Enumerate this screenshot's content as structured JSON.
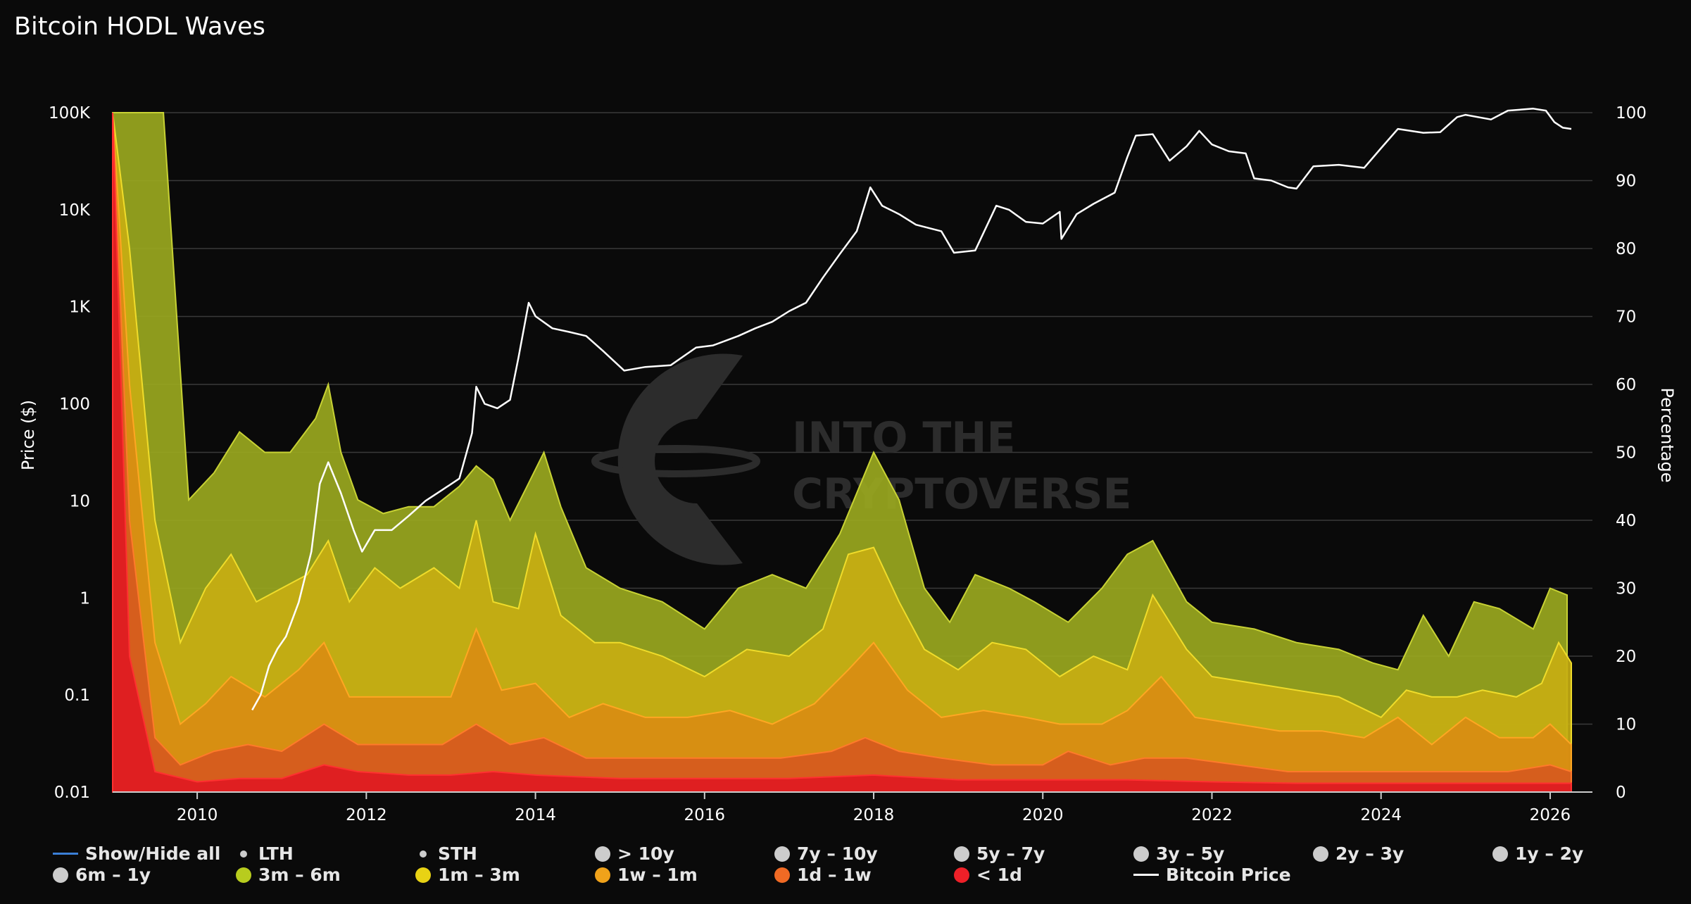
{
  "title": "Bitcoin HODL Waves",
  "watermark": {
    "line1": "INTO THE",
    "line2": "CRYPTOVERSE"
  },
  "colors": {
    "background": "#0a0a0a",
    "grid": "#3a3a3a",
    "band_3m_6m": "#9aa81f",
    "band_1m_3m": "#c7ae12",
    "band_1w_1m": "#d98c12",
    "band_1d_1w": "#d65a1e",
    "band_lt1d": "#e01a22",
    "price": "#ffffff"
  },
  "chart_data": {
    "type": "area",
    "title": "Bitcoin HODL Waves",
    "left_axis": {
      "label": "Price ($)",
      "scale": "log",
      "range": [
        0.01,
        100000
      ],
      "ticks": [
        "0.01",
        "0.1",
        "1",
        "10",
        "100",
        "1K",
        "10K",
        "100K"
      ]
    },
    "right_axis": {
      "label": "Percentage",
      "range": [
        0,
        100
      ],
      "ticks": [
        "0",
        "10",
        "20",
        "30",
        "40",
        "50",
        "60",
        "70",
        "80",
        "90",
        "100"
      ]
    },
    "x_axis": {
      "range": [
        2009.0,
        2026.5
      ],
      "ticks": [
        "2010",
        "2012",
        "2014",
        "2016",
        "2018",
        "2020",
        "2022",
        "2024",
        "2026"
      ]
    },
    "grid": true,
    "legend_position": "bottom",
    "series": [
      {
        "name": "3m – 6m",
        "kind": "cumulative-percent",
        "x": [
          2009.0,
          2009.3,
          2009.6,
          2009.9,
          2010.2,
          2010.5,
          2010.8,
          2011.1,
          2011.4,
          2011.55,
          2011.7,
          2011.9,
          2012.2,
          2012.5,
          2012.8,
          2013.1,
          2013.3,
          2013.5,
          2013.7,
          2013.9,
          2014.1,
          2014.3,
          2014.6,
          2015.0,
          2015.5,
          2016.0,
          2016.4,
          2016.8,
          2017.2,
          2017.6,
          2018.0,
          2018.3,
          2018.6,
          2018.9,
          2019.2,
          2019.6,
          2019.9,
          2020.3,
          2020.7,
          2021.0,
          2021.3,
          2021.7,
          2022.0,
          2022.5,
          2023.0,
          2023.5,
          2023.9,
          2024.2,
          2024.5,
          2024.8,
          2025.1,
          2025.4,
          2025.8,
          2026.0,
          2026.2
        ],
        "y": [
          100,
          100,
          100,
          43,
          47,
          53,
          50,
          50,
          55,
          60,
          50,
          43,
          41,
          42,
          42,
          45,
          48,
          46,
          40,
          45,
          50,
          42,
          33,
          30,
          28,
          24,
          30,
          32,
          30,
          38,
          50,
          43,
          30,
          25,
          32,
          30,
          28,
          25,
          30,
          35,
          37,
          28,
          25,
          24,
          22,
          21,
          19,
          18,
          26,
          20,
          28,
          27,
          24,
          30,
          29
        ]
      },
      {
        "name": "1m – 3m",
        "kind": "cumulative-percent",
        "x": [
          2009.0,
          2009.2,
          2009.5,
          2009.8,
          2010.1,
          2010.4,
          2010.7,
          2011.0,
          2011.3,
          2011.55,
          2011.8,
          2012.1,
          2012.4,
          2012.8,
          2013.1,
          2013.3,
          2013.5,
          2013.8,
          2014.0,
          2014.3,
          2014.7,
          2015.0,
          2015.5,
          2016.0,
          2016.5,
          2017.0,
          2017.4,
          2017.7,
          2018.0,
          2018.3,
          2018.6,
          2019.0,
          2019.4,
          2019.8,
          2020.2,
          2020.6,
          2021.0,
          2021.3,
          2021.7,
          2022.0,
          2022.5,
          2023.0,
          2023.5,
          2024.0,
          2024.3,
          2024.6,
          2024.9,
          2025.2,
          2025.6,
          2025.9,
          2026.1,
          2026.25
        ],
        "y": [
          100,
          80,
          40,
          22,
          30,
          35,
          28,
          30,
          32,
          37,
          28,
          33,
          30,
          33,
          30,
          40,
          28,
          27,
          38,
          26,
          22,
          22,
          20,
          17,
          21,
          20,
          24,
          35,
          36,
          28,
          21,
          18,
          22,
          21,
          17,
          20,
          18,
          29,
          21,
          17,
          16,
          15,
          14,
          11,
          15,
          14,
          14,
          15,
          14,
          16,
          22,
          19
        ]
      },
      {
        "name": "1w – 1m",
        "kind": "cumulative-percent",
        "x": [
          2009.0,
          2009.2,
          2009.5,
          2009.8,
          2010.1,
          2010.4,
          2010.8,
          2011.2,
          2011.5,
          2011.8,
          2012.2,
          2012.6,
          2013.0,
          2013.3,
          2013.6,
          2014.0,
          2014.4,
          2014.8,
          2015.3,
          2015.8,
          2016.3,
          2016.8,
          2017.3,
          2017.7,
          2018.0,
          2018.4,
          2018.8,
          2019.3,
          2019.8,
          2020.2,
          2020.7,
          2021.0,
          2021.4,
          2021.8,
          2022.3,
          2022.8,
          2023.3,
          2023.8,
          2024.2,
          2024.6,
          2025.0,
          2025.4,
          2025.8,
          2026.0,
          2026.25
        ],
        "y": [
          100,
          60,
          22,
          10,
          13,
          17,
          14,
          18,
          22,
          14,
          14,
          14,
          14,
          24,
          15,
          16,
          11,
          13,
          11,
          11,
          12,
          10,
          13,
          18,
          22,
          15,
          11,
          12,
          11,
          10,
          10,
          12,
          17,
          11,
          10,
          9,
          9,
          8,
          11,
          7,
          11,
          8,
          8,
          10,
          7
        ]
      },
      {
        "name": "1d – 1w",
        "kind": "cumulative-percent",
        "x": [
          2009.0,
          2009.2,
          2009.5,
          2009.8,
          2010.2,
          2010.6,
          2011.0,
          2011.5,
          2011.9,
          2012.4,
          2012.9,
          2013.3,
          2013.7,
          2014.1,
          2014.6,
          2015.1,
          2015.7,
          2016.3,
          2016.9,
          2017.5,
          2017.9,
          2018.3,
          2018.8,
          2019.4,
          2020.0,
          2020.3,
          2020.8,
          2021.2,
          2021.7,
          2022.3,
          2022.9,
          2023.5,
          2024.0,
          2024.5,
          2025.0,
          2025.5,
          2026.0,
          2026.25
        ],
        "y": [
          100,
          40,
          8,
          4,
          6,
          7,
          6,
          10,
          7,
          7,
          7,
          10,
          7,
          8,
          5,
          5,
          5,
          5,
          5,
          6,
          8,
          6,
          5,
          4,
          4,
          6,
          4,
          5,
          5,
          4,
          3,
          3,
          3,
          3,
          3,
          3,
          4,
          3
        ]
      },
      {
        "name": "< 1d",
        "kind": "cumulative-percent",
        "x": [
          2009.0,
          2009.2,
          2009.5,
          2010.0,
          2010.5,
          2011.0,
          2011.5,
          2011.9,
          2012.5,
          2013.0,
          2013.5,
          2014.0,
          2015.0,
          2016.0,
          2017.0,
          2018.0,
          2019.0,
          2020.0,
          2021.0,
          2022.0,
          2023.0,
          2024.0,
          2025.0,
          2026.25
        ],
        "y": [
          100,
          20,
          3,
          1.5,
          2,
          2,
          4,
          3,
          2.5,
          2.5,
          3,
          2.5,
          2,
          2,
          2,
          2.5,
          1.8,
          1.8,
          1.8,
          1.5,
          1.3,
          1.3,
          1.3,
          1.3
        ]
      },
      {
        "name": "Bitcoin Price",
        "kind": "price-usd",
        "x": [
          2010.65,
          2010.75,
          2010.85,
          2010.95,
          2011.05,
          2011.2,
          2011.35,
          2011.45,
          2011.55,
          2011.7,
          2011.85,
          2011.95,
          2012.1,
          2012.3,
          2012.5,
          2012.7,
          2012.9,
          2013.1,
          2013.25,
          2013.3,
          2013.4,
          2013.55,
          2013.7,
          2013.8,
          2013.92,
          2014.0,
          2014.2,
          2014.4,
          2014.6,
          2014.8,
          2015.05,
          2015.3,
          2015.6,
          2015.9,
          2016.1,
          2016.4,
          2016.6,
          2016.8,
          2017.0,
          2017.2,
          2017.4,
          2017.6,
          2017.8,
          2017.96,
          2018.1,
          2018.3,
          2018.5,
          2018.8,
          2018.95,
          2019.2,
          2019.45,
          2019.6,
          2019.8,
          2020.0,
          2020.2,
          2020.22,
          2020.4,
          2020.6,
          2020.85,
          2021.0,
          2021.1,
          2021.3,
          2021.5,
          2021.7,
          2021.85,
          2022.0,
          2022.2,
          2022.4,
          2022.5,
          2022.7,
          2022.9,
          2023.0,
          2023.2,
          2023.5,
          2023.8,
          2024.0,
          2024.2,
          2024.5,
          2024.7,
          2024.9,
          2025.0,
          2025.3,
          2025.5,
          2025.8,
          2025.95,
          2026.05,
          2026.15,
          2026.25
        ],
        "y": [
          0.07,
          0.1,
          0.2,
          0.3,
          0.4,
          0.9,
          3,
          15,
          25,
          12,
          5,
          3,
          5,
          5,
          7,
          10,
          13,
          17,
          50,
          150,
          100,
          90,
          110,
          300,
          1100,
          800,
          600,
          550,
          500,
          350,
          220,
          240,
          250,
          380,
          400,
          500,
          600,
          700,
          900,
          1100,
          2000,
          3500,
          6000,
          17000,
          11000,
          9000,
          7000,
          6000,
          3600,
          3800,
          11000,
          10000,
          7500,
          7200,
          9500,
          5000,
          9000,
          11500,
          15000,
          35000,
          58000,
          60000,
          32000,
          45000,
          65000,
          47000,
          40000,
          38000,
          21000,
          20000,
          17000,
          16500,
          28000,
          29000,
          27000,
          43000,
          68000,
          62000,
          63000,
          90000,
          95000,
          85000,
          105000,
          110000,
          105000,
          80000,
          70000,
          68000
        ]
      }
    ]
  },
  "legend": {
    "items": [
      {
        "label": "Show/Hide all",
        "marker": "line",
        "color": "#3b7fd6"
      },
      {
        "label": "LTH",
        "marker": "small-dot",
        "color": "#cccccc"
      },
      {
        "label": "STH",
        "marker": "small-dot",
        "color": "#cccccc"
      },
      {
        "label": "> 10y",
        "marker": "dot",
        "color": "#cccccc"
      },
      {
        "label": "7y – 10y",
        "marker": "dot",
        "color": "#cccccc"
      },
      {
        "label": "5y – 7y",
        "marker": "dot",
        "color": "#cccccc"
      },
      {
        "label": "3y – 5y",
        "marker": "dot",
        "color": "#cccccc"
      },
      {
        "label": "2y – 3y",
        "marker": "dot",
        "color": "#cccccc"
      },
      {
        "label": "1y – 2y",
        "marker": "dot",
        "color": "#cccccc"
      },
      {
        "label": "6m – 1y",
        "marker": "dot",
        "color": "#cccccc"
      },
      {
        "label": "3m – 6m",
        "marker": "dot",
        "color": "#b8cc1e"
      },
      {
        "label": "1m – 3m",
        "marker": "dot",
        "color": "#e8d214"
      },
      {
        "label": "1w – 1m",
        "marker": "dot",
        "color": "#f0a21a"
      },
      {
        "label": "1d – 1w",
        "marker": "dot",
        "color": "#f06a24"
      },
      {
        "label": "< 1d",
        "marker": "dot",
        "color": "#ee2028"
      },
      {
        "label": "Bitcoin Price",
        "marker": "line",
        "color": "#ffffff"
      }
    ]
  }
}
